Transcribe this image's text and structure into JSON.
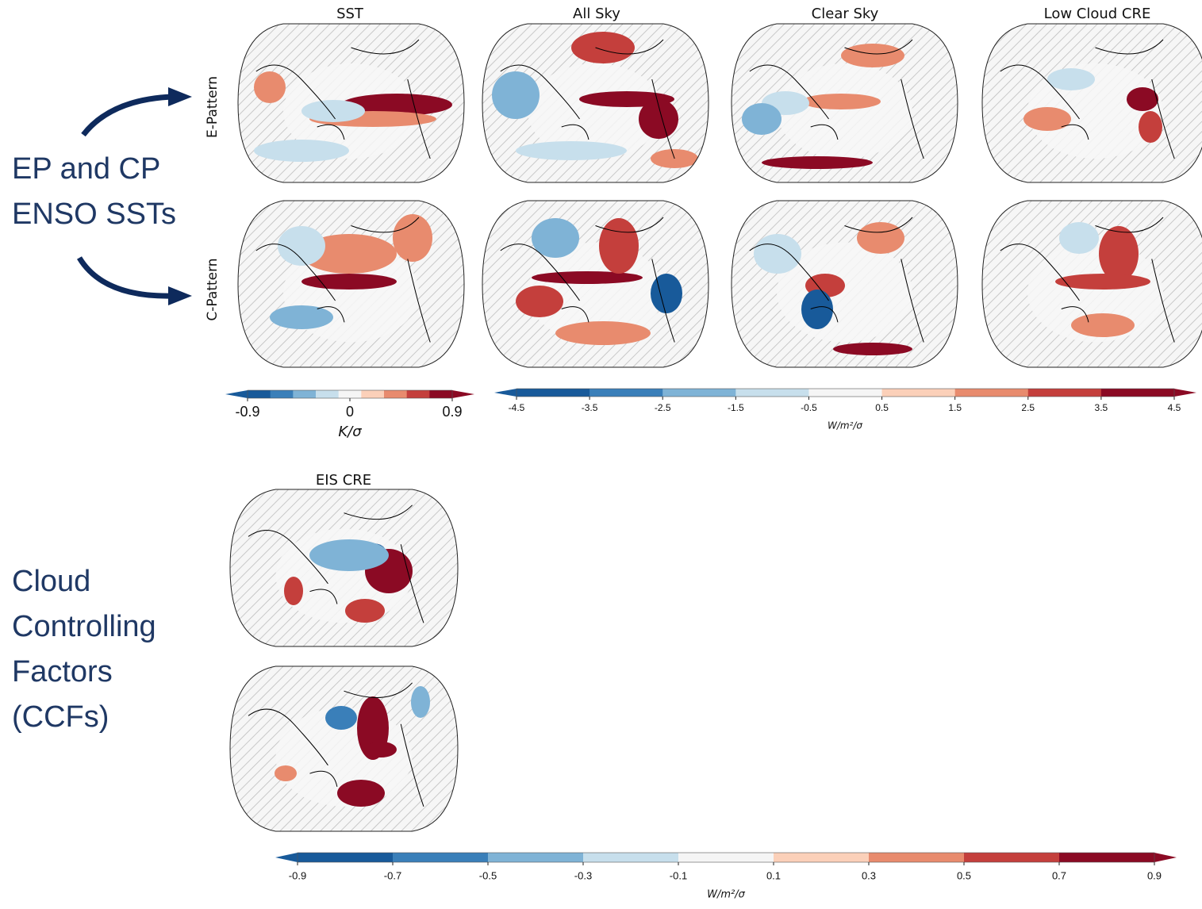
{
  "annotations": {
    "enso": [
      "EP and CP",
      "ENSO SSTs"
    ],
    "ccf": [
      "Cloud",
      "Controlling",
      "Factors",
      "(CCFs)"
    ]
  },
  "row_labels": [
    "E-Pattern",
    "C-Pattern"
  ],
  "panel_titles": [
    "SST",
    "All Sky",
    "Clear Sky",
    "Low Cloud CRE",
    "EIS CRE"
  ],
  "colorbars": [
    {
      "lim": [
        -0.9,
        0.9
      ],
      "ticks": [
        -0.9,
        0,
        0.9
      ],
      "label": "K/σ",
      "colors": [
        "#185a9a",
        "#3a7fb9",
        "#7fb3d6",
        "#c7dfec",
        "#f5f5f5",
        "#fbd0b9",
        "#e88b6e",
        "#c43f3c",
        "#8b0a24"
      ]
    },
    {
      "lim": [
        -4.5,
        4.5
      ],
      "ticks": [
        -4.5,
        -3.5,
        -2.5,
        -1.5,
        -0.5,
        0.5,
        1.5,
        2.5,
        3.5,
        4.5
      ],
      "label": "W/m²/σ",
      "colors": [
        "#185a9a",
        "#3a7fb9",
        "#7fb3d6",
        "#c7dfec",
        "#f5f5f5",
        "#fbd0b9",
        "#e88b6e",
        "#c43f3c",
        "#8b0a24"
      ]
    },
    {
      "lim": [
        -0.9,
        0.9
      ],
      "ticks": [
        -0.9,
        -0.7,
        -0.5,
        -0.3,
        -0.1,
        0.1,
        0.3,
        0.5,
        0.7,
        0.9
      ],
      "label": "W/m²/σ",
      "colors": [
        "#185a9a",
        "#3a7fb9",
        "#7fb3d6",
        "#c7dfec",
        "#f5f5f5",
        "#fbd0b9",
        "#e88b6e",
        "#c43f3c",
        "#8b0a24"
      ]
    }
  ]
}
